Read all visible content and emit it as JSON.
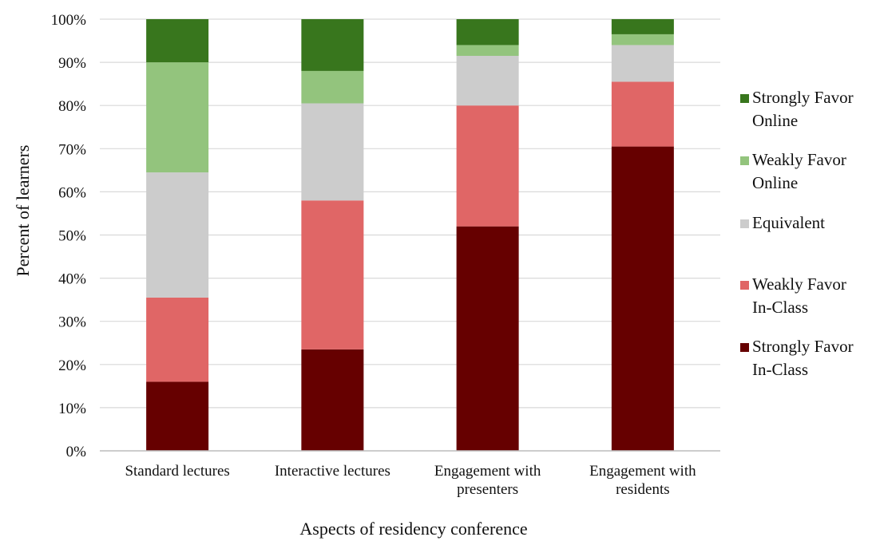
{
  "chart_data": {
    "type": "bar",
    "stacked": true,
    "percent": true,
    "title": "",
    "xlabel": "Aspects of residency conference",
    "ylabel": "Percent of learners",
    "ylim": [
      0,
      100
    ],
    "yticks": [
      0,
      10,
      20,
      30,
      40,
      50,
      60,
      70,
      80,
      90,
      100
    ],
    "ytick_labels": [
      "0%",
      "10%",
      "20%",
      "30%",
      "40%",
      "50%",
      "60%",
      "70%",
      "80%",
      "90%",
      "100%"
    ],
    "grid": true,
    "legend_position": "right",
    "categories": [
      [
        "Standard lectures"
      ],
      [
        "Interactive lectures"
      ],
      [
        "Engagement with",
        "presenters"
      ],
      [
        "Engagement with",
        "residents"
      ]
    ],
    "series": [
      {
        "name": [
          "Strongly Favor",
          "In-Class"
        ],
        "color": "#660000",
        "values": [
          16,
          23.5,
          52,
          70.5
        ]
      },
      {
        "name": [
          "Weakly Favor",
          "In-Class"
        ],
        "color": "#e06666",
        "values": [
          19.5,
          34.5,
          28,
          15
        ]
      },
      {
        "name": [
          "Equivalent"
        ],
        "color": "#cccccc",
        "values": [
          29,
          22.5,
          11.5,
          8.5
        ]
      },
      {
        "name": [
          "Weakly Favor",
          "Online"
        ],
        "color": "#93c47d",
        "values": [
          25.5,
          7.5,
          2.5,
          2.5
        ]
      },
      {
        "name": [
          "Strongly Favor",
          "Online"
        ],
        "color": "#38761d",
        "values": [
          10,
          12,
          6,
          3.5
        ]
      }
    ]
  }
}
